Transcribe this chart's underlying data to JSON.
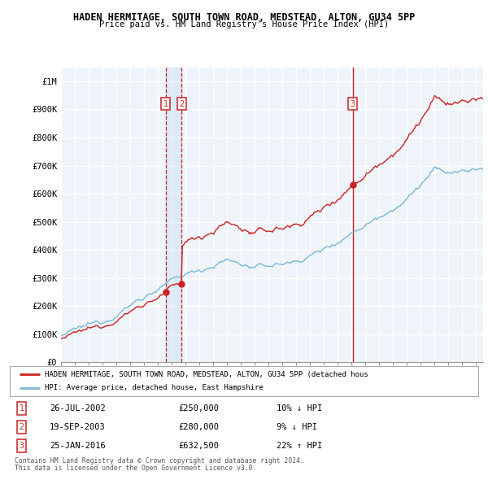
{
  "title": "HADEN HERMITAGE, SOUTH TOWN ROAD, MEDSTEAD, ALTON, GU34 5PP",
  "subtitle": "Price paid vs. HM Land Registry's House Price Index (HPI)",
  "hpi_color": "#7ab8d9",
  "property_color": "#cc2222",
  "background_color": "#ffffff",
  "grid_color": "#cccccc",
  "ylabel_ticks": [
    "£0",
    "£100K",
    "£200K",
    "£300K",
    "£400K",
    "£500K",
    "£600K",
    "£700K",
    "£800K",
    "£900K",
    "£1M"
  ],
  "ylabel_values": [
    0,
    100000,
    200000,
    300000,
    400000,
    500000,
    600000,
    700000,
    800000,
    900000,
    1000000
  ],
  "ylim": [
    0,
    1050000
  ],
  "xlim_start": 1995.0,
  "xlim_end": 2025.5,
  "transactions": [
    {
      "label": "1",
      "date": 2002.57,
      "price": 250000,
      "text": "26-JUL-2002",
      "amount": "£250,000",
      "pct": "10% ↓ HPI"
    },
    {
      "label": "2",
      "date": 2003.72,
      "price": 280000,
      "text": "19-SEP-2003",
      "amount": "£280,000",
      "pct": "9% ↓ HPI"
    },
    {
      "label": "3",
      "date": 2016.07,
      "price": 632500,
      "text": "25-JAN-2016",
      "amount": "£632,500",
      "pct": "22% ↑ HPI"
    }
  ],
  "legend_property": "HADEN HERMITAGE, SOUTH TOWN ROAD, MEDSTEAD, ALTON, GU34 5PP (detached hous",
  "legend_hpi": "HPI: Average price, detached house, East Hampshire",
  "footer1": "Contains HM Land Registry data © Crown copyright and database right 2024.",
  "footer2": "This data is licensed under the Open Government Licence v3.0."
}
